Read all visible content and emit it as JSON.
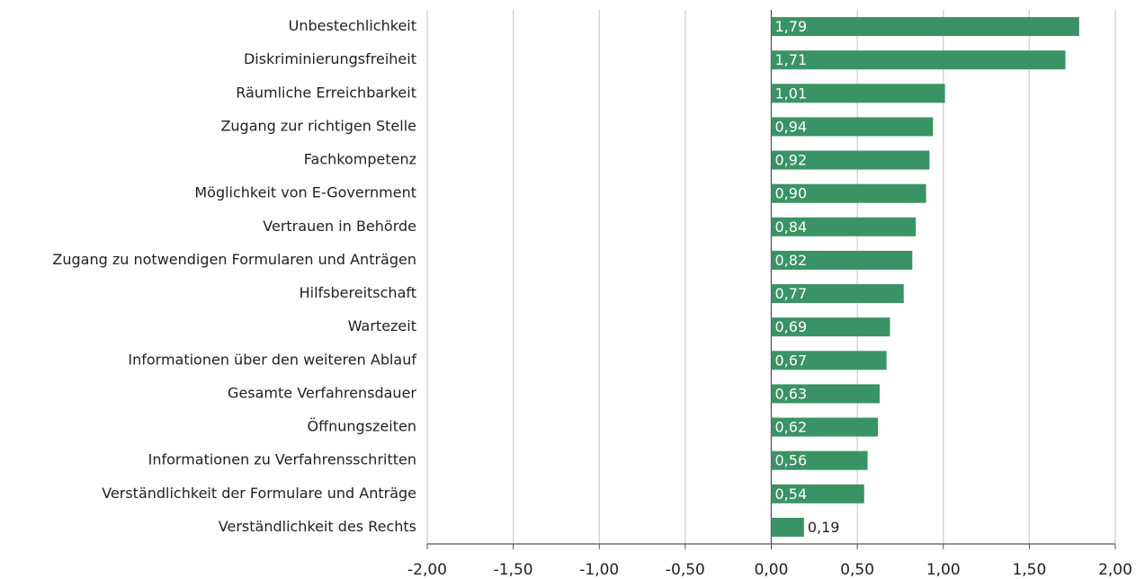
{
  "chart_data": {
    "type": "barh",
    "categories": [
      "Unbestechlichkeit",
      "Diskriminierungsfreiheit",
      "Räumliche Erreichbarkeit",
      "Zugang zur richtigen Stelle",
      "Fachkompetenz",
      "Möglichkeit von E-Government",
      "Vertrauen in Behörde",
      "Zugang zu notwendigen Formularen und Anträgen",
      "Hilfsbereitschaft",
      "Wartezeit",
      "Informationen über den weiteren Ablauf",
      "Gesamte Verfahrensdauer",
      "Öffnungszeiten",
      "Informationen zu Verfahrensschritten",
      "Verständlichkeit der Formulare und Anträge",
      "Verständlichkeit des Rechts"
    ],
    "values": [
      1.79,
      1.71,
      1.01,
      0.94,
      0.92,
      0.9,
      0.84,
      0.82,
      0.77,
      0.69,
      0.67,
      0.63,
      0.62,
      0.56,
      0.54,
      0.19
    ],
    "value_labels": [
      "1,79",
      "1,71",
      "1,01",
      "0,94",
      "0,92",
      "0,90",
      "0,84",
      "0,82",
      "0,77",
      "0,69",
      "0,67",
      "0,63",
      "0,62",
      "0,56",
      "0,54",
      "0,19"
    ],
    "color": "#3a9364",
    "xlim": [
      -2,
      2
    ],
    "xticks": [
      {
        "value": -2,
        "label": "-2,00"
      },
      {
        "value": -1.5,
        "label": "-1,50"
      },
      {
        "value": -1,
        "label": "-1,00"
      },
      {
        "value": -0.5,
        "label": "-0,50"
      },
      {
        "value": 0,
        "label": "0,00"
      },
      {
        "value": 0.5,
        "label": "0,50"
      },
      {
        "value": 1,
        "label": "1,00"
      },
      {
        "value": 1.5,
        "label": "1,50"
      },
      {
        "value": 2,
        "label": "2,00"
      }
    ],
    "grid": true
  }
}
